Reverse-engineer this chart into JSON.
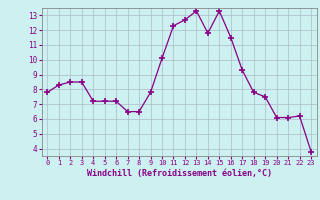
{
  "x": [
    0,
    1,
    2,
    3,
    4,
    5,
    6,
    7,
    8,
    9,
    10,
    11,
    12,
    13,
    14,
    15,
    16,
    17,
    18,
    19,
    20,
    21,
    22,
    23
  ],
  "y": [
    7.8,
    8.3,
    8.5,
    8.5,
    7.2,
    7.2,
    7.2,
    6.5,
    6.5,
    7.8,
    10.1,
    12.3,
    12.7,
    13.3,
    11.8,
    13.3,
    11.5,
    9.3,
    7.8,
    7.5,
    6.1,
    6.1,
    6.2,
    3.8
  ],
  "xlabel": "Windchill (Refroidissement éolien,°C)",
  "xlim": [
    -0.5,
    23.5
  ],
  "ylim": [
    3.5,
    13.5
  ],
  "yticks": [
    4,
    5,
    6,
    7,
    8,
    9,
    10,
    11,
    12,
    13
  ],
  "xticks": [
    0,
    1,
    2,
    3,
    4,
    5,
    6,
    7,
    8,
    9,
    10,
    11,
    12,
    13,
    14,
    15,
    16,
    17,
    18,
    19,
    20,
    21,
    22,
    23
  ],
  "line_color": "#880088",
  "bg_color": "#cdf0f0",
  "grid_color": "#aabbcc",
  "text_color": "#880088",
  "spine_color": "#888888"
}
